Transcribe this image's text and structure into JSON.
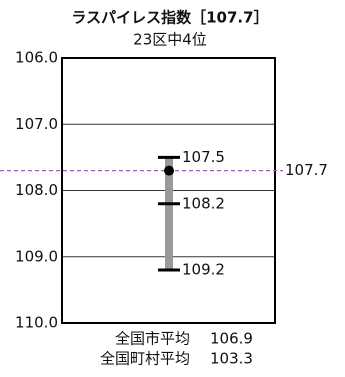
{
  "chart_data": {
    "type": "range",
    "title": "ラスパイレス指数［107.7］",
    "subtitle": "23区中4位",
    "ylim": [
      106,
      110
    ],
    "y_inverted": true,
    "yticks": [
      {
        "value": 106,
        "label": "106.0"
      },
      {
        "value": 107,
        "label": "107.0"
      },
      {
        "value": 108,
        "label": "108.0"
      },
      {
        "value": 109,
        "label": "109.0"
      },
      {
        "value": 110,
        "label": "110.0"
      }
    ],
    "grid": true,
    "range_values": [
      107.5,
      108.2,
      109.2
    ],
    "range_color": "#999999",
    "value": 107.7,
    "value_color": "#a060b0",
    "notes": [
      {
        "label": "全国市平均",
        "value": 106.9
      },
      {
        "label": "全国町村平均",
        "value": 103.3
      }
    ]
  }
}
